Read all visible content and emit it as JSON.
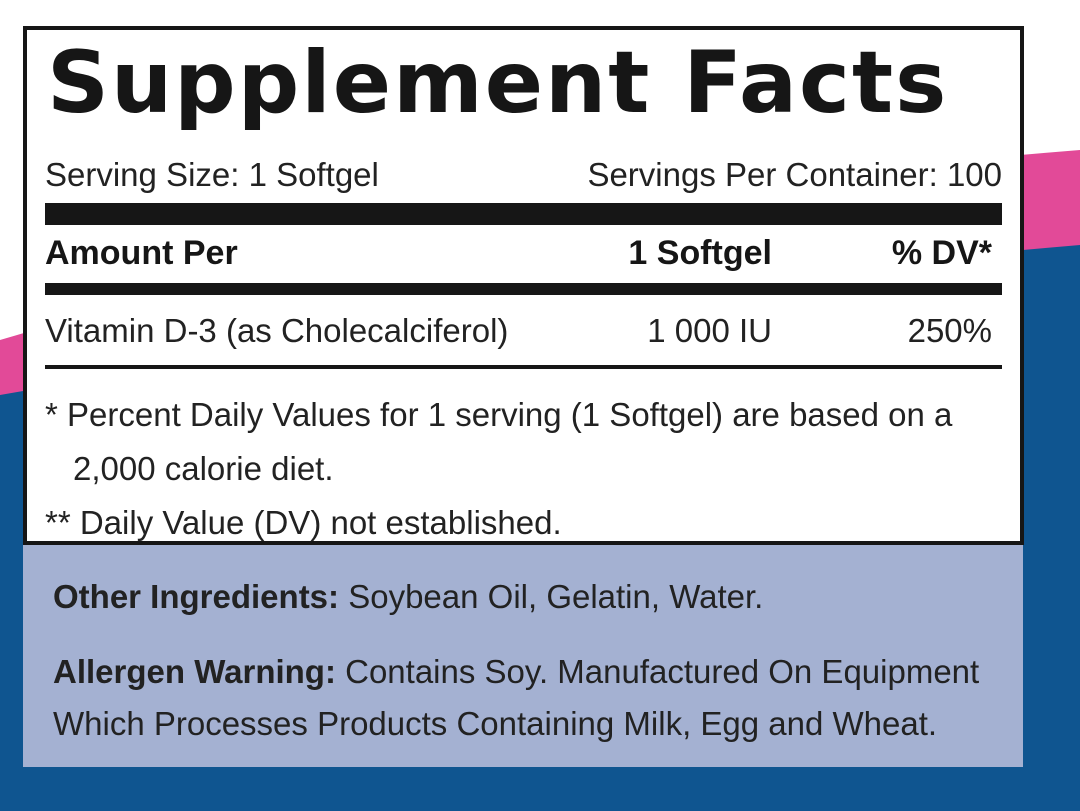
{
  "colors": {
    "page_navy": "#0f5590",
    "accent_pink": "#e24a98",
    "panel_lavender": "#a4b1d2",
    "ink": "#161616"
  },
  "title": "Supplement Facts",
  "serving": {
    "size": "Serving Size: 1 Softgel",
    "per_container": "Servings Per Container: 100"
  },
  "table": {
    "headers": [
      "Amount Per",
      "1 Softgel",
      "% DV*"
    ],
    "rows": [
      {
        "name": "Vitamin D-3 (as Cholecalciferol)",
        "amount": "1 000 IU",
        "dv": "250%"
      }
    ]
  },
  "footnotes": {
    "line1": "* Percent Daily Values for 1 serving (1 Softgel) are based on a",
    "line1_cont": "2,000 calorie diet.",
    "line2": "** Daily Value (DV) not established."
  },
  "other_ingredients": {
    "label": "Other Ingredients:",
    "text": " Soybean Oil, Gelatin, Water."
  },
  "allergen_warning": {
    "label": "Allergen Warning:",
    "text": " Contains Soy. Manufactured On Equipment",
    "text_cont": "Which Processes Products Containing Milk, Egg and Wheat."
  }
}
